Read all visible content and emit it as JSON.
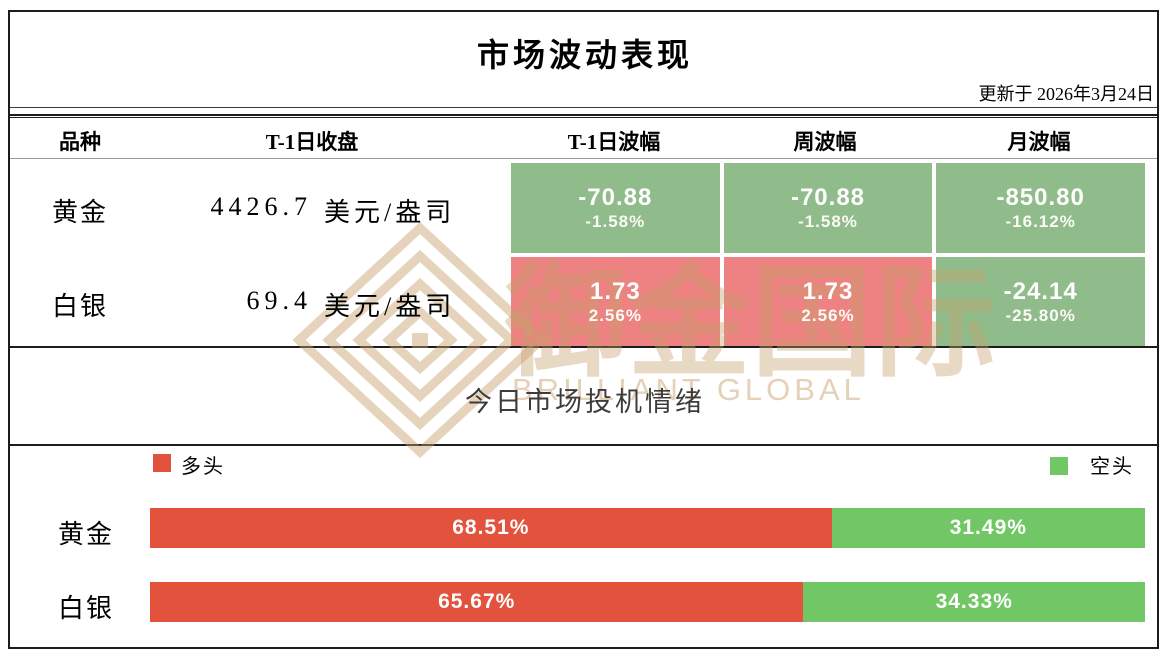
{
  "page": {
    "title": "市场波动表现",
    "updated_label": "更新于  2026年3月24日"
  },
  "colors": {
    "cell_down_green": "#8fbc8a",
    "cell_up_red": "#ee8181",
    "bar_bull_red": "#e2523d",
    "bar_bear_green": "#71c765",
    "watermark_tan": "#c6a06c"
  },
  "volatility_table": {
    "headers": [
      "品种",
      "T-1日收盘",
      "T-1日波幅",
      "周波幅",
      "月波幅"
    ],
    "rows": [
      {
        "name": "黄金",
        "close": "4426.7",
        "unit": "美元/盎司",
        "cells": [
          {
            "value": "-70.88",
            "pct": "-1.58%",
            "tone": "down"
          },
          {
            "value": "-70.88",
            "pct": "-1.58%",
            "tone": "down"
          },
          {
            "value": "-850.80",
            "pct": "-16.12%",
            "tone": "down"
          }
        ]
      },
      {
        "name": "白银",
        "close": "69.4",
        "unit": "美元/盎司",
        "cells": [
          {
            "value": "1.73",
            "pct": "2.56%",
            "tone": "up"
          },
          {
            "value": "1.73",
            "pct": "2.56%",
            "tone": "up"
          },
          {
            "value": "-24.14",
            "pct": "-25.80%",
            "tone": "down"
          }
        ]
      }
    ]
  },
  "sentiment": {
    "title": "今日市场投机情绪",
    "legend": {
      "bull": "多头",
      "bear": "空头"
    },
    "rows": [
      {
        "name": "黄金",
        "bull_pct": 68.51,
        "bull_label": "68.51%",
        "bear_pct": 31.49,
        "bear_label": "31.49%"
      },
      {
        "name": "白银",
        "bull_pct": 65.67,
        "bull_label": "65.67%",
        "bear_pct": 34.33,
        "bear_label": "34.33%"
      }
    ]
  },
  "watermark": {
    "cn": "御金国际",
    "en": "BRILLIANT GLOBAL"
  },
  "chart_data": [
    {
      "type": "table",
      "title": "市场波动表现",
      "subtitle": "更新于 2026年3月24日",
      "columns": [
        "品种",
        "T-1日收盘",
        "T-1日波幅",
        "周波幅",
        "月波幅"
      ],
      "rows": [
        [
          "黄金",
          "4426.7 美元/盎司",
          "-70.88 (-1.58%)",
          "-70.88 (-1.58%)",
          "-850.80 (-16.12%)"
        ],
        [
          "白银",
          "69.4 美元/盎司",
          "1.73 (2.56%)",
          "1.73 (2.56%)",
          "-24.14 (-25.80%)"
        ]
      ],
      "cell_color_rule": "negative=green(#8fbc8a), positive=red(#ee8181)"
    },
    {
      "type": "bar",
      "stacked": true,
      "orientation": "horizontal",
      "title": "今日市场投机情绪",
      "categories": [
        "黄金",
        "白银"
      ],
      "series": [
        {
          "name": "多头",
          "values": [
            68.51,
            65.67
          ],
          "color": "#e2523d"
        },
        {
          "name": "空头",
          "values": [
            31.49,
            34.33
          ],
          "color": "#71c765"
        }
      ],
      "xlim": [
        0,
        100
      ],
      "unit": "%",
      "legend_position": "top",
      "grid": false
    }
  ]
}
